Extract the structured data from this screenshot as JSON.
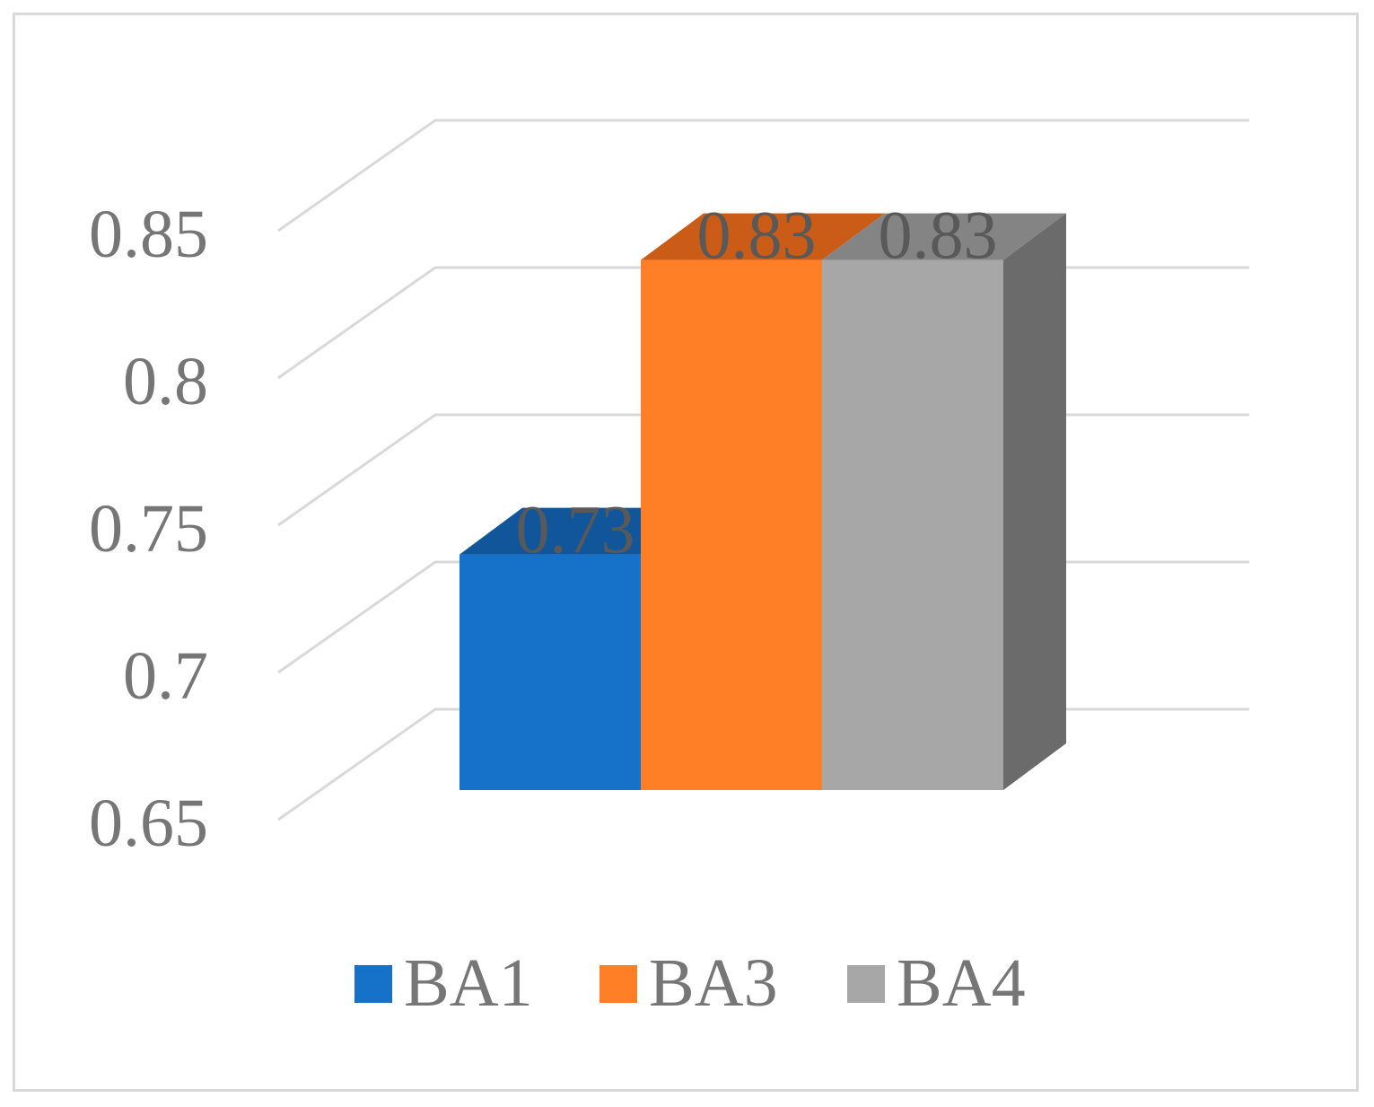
{
  "chart_data": {
    "type": "bar",
    "style": "3d-column",
    "categories": [
      "BA1",
      "BA3",
      "BA4"
    ],
    "values": [
      0.73,
      0.83,
      0.83
    ],
    "data_labels": [
      "0.73",
      "0.83",
      "0.83"
    ],
    "ylim": [
      0.65,
      0.85
    ],
    "yticks": [
      0.65,
      0.7,
      0.75,
      0.8,
      0.85
    ],
    "ytick_labels": [
      "0.65",
      "0.7",
      "0.75",
      "0.8",
      "0.85"
    ],
    "grid": true,
    "legend": {
      "position": "bottom",
      "entries": [
        "BA1",
        "BA3",
        "BA4"
      ]
    },
    "colors": {
      "BA1": {
        "front": "#1672c8",
        "top": "#11559a",
        "side": "#0f4c8a"
      },
      "BA3": {
        "front": "#fe7f25",
        "top": "#cb5c17",
        "side": "#b84f12"
      },
      "BA4": {
        "front": "#a7a7a7",
        "top": "#848484",
        "side": "#6b6b6b"
      }
    },
    "gridline_color": "#d9d9d9"
  }
}
